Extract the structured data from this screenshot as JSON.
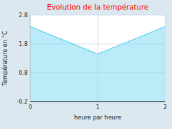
{
  "chart_data": {
    "type": "area",
    "title": "Evolution de la température",
    "xlabel": "heure par heure",
    "ylabel": "Température en °C",
    "x": [
      0,
      1,
      2
    ],
    "values": [
      2.4,
      1.45,
      2.4
    ],
    "xlim": [
      0,
      2
    ],
    "ylim": [
      -0.2,
      2.8
    ],
    "xticks": [
      0,
      1,
      2
    ],
    "yticks": [
      -0.2,
      0.8,
      1.8,
      2.8
    ],
    "color": "#55ccee",
    "line_style": "dotted",
    "grid": true
  }
}
